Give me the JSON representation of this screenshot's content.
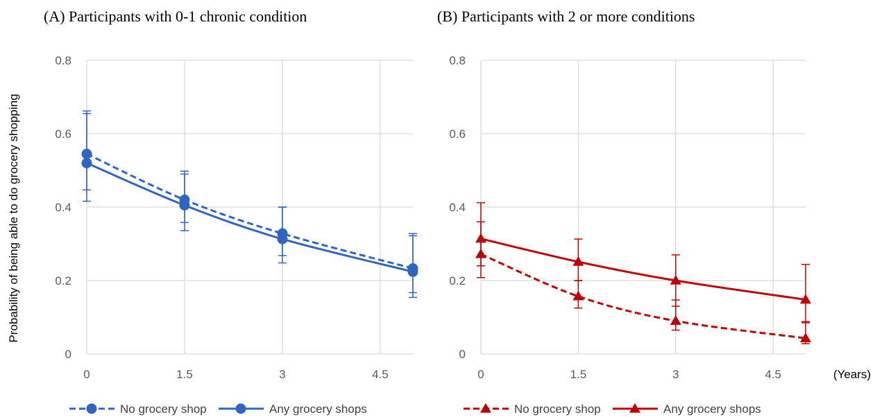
{
  "figure": {
    "ylabel": "Probability of being able to do grocery shopping",
    "x_unit_label": "(Years)"
  },
  "chart_data": [
    {
      "type": "line",
      "title": "(A) Participants with 0-1 chronic condition",
      "xlim": [
        0,
        5
      ],
      "ylim": [
        0,
        0.8
      ],
      "x_ticks": [
        "0",
        "1.5",
        "3",
        "4.5"
      ],
      "x_tick_values": [
        0,
        1.5,
        3,
        4.5
      ],
      "y_ticks": [
        "0",
        "0.2",
        "0.4",
        "0.6",
        "0.8"
      ],
      "y_tick_values": [
        0,
        0.2,
        0.4,
        0.6,
        0.8
      ],
      "grid": true,
      "marker": "circle",
      "color": "#2E66C0",
      "series": [
        {
          "name": "No grocery shop",
          "style": "dashed",
          "x": [
            0,
            1.5,
            3,
            5
          ],
          "y": [
            0.545,
            0.42,
            0.328,
            0.233
          ],
          "err_low": [
            0.447,
            0.358,
            0.268,
            0.167
          ],
          "err_high": [
            0.662,
            0.498,
            0.4,
            0.328
          ]
        },
        {
          "name": "Any grocery shops",
          "style": "solid",
          "x": [
            0,
            1.5,
            3,
            5
          ],
          "y": [
            0.52,
            0.405,
            0.313,
            0.224
          ],
          "err_low": [
            0.416,
            0.336,
            0.248,
            0.154
          ],
          "err_high": [
            0.655,
            0.49,
            0.4,
            0.322
          ]
        }
      ]
    },
    {
      "type": "line",
      "title": "(B) Participants with 2 or more conditions",
      "xlim": [
        0,
        5
      ],
      "ylim": [
        0,
        0.8
      ],
      "x_ticks": [
        "0",
        "1.5",
        "3",
        "4.5"
      ],
      "x_tick_values": [
        0,
        1.5,
        3,
        4.5
      ],
      "y_ticks": [
        "0",
        "0.2",
        "0.4",
        "0.6",
        "0.8"
      ],
      "y_tick_values": [
        0,
        0.2,
        0.4,
        0.6,
        0.8
      ],
      "grid": true,
      "marker": "triangle",
      "color": "#C00000",
      "series": [
        {
          "name": "No grocery shop",
          "style": "dashed",
          "x": [
            0,
            1.5,
            3,
            5
          ],
          "y": [
            0.272,
            0.157,
            0.09,
            0.043
          ],
          "err_low": [
            0.208,
            0.125,
            0.065,
            0.028
          ],
          "err_high": [
            0.36,
            0.2,
            0.147,
            0.088
          ]
        },
        {
          "name": "Any grocery shops",
          "style": "solid",
          "x": [
            0,
            1.5,
            3,
            5
          ],
          "y": [
            0.314,
            0.251,
            0.2,
            0.148
          ],
          "err_low": [
            0.24,
            0.2,
            0.13,
            0.085
          ],
          "err_high": [
            0.412,
            0.313,
            0.27,
            0.244
          ]
        }
      ]
    }
  ]
}
